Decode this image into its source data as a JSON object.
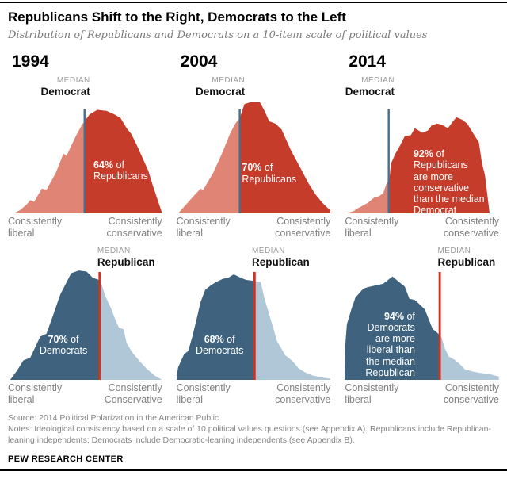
{
  "header": {
    "title": "Republicans Shift to the Right, Democrats to the Left",
    "subtitle": "Distribution of Republicans and Democrats on a 10-item scale of political values"
  },
  "palette": {
    "dark_red": "#c53c2b",
    "light_red": "#e08475",
    "dark_blue": "#3f637e",
    "light_blue": "#b0c7d7",
    "median_line_blue": "#44708e",
    "median_line_red": "#d5311f",
    "annotation_white": "#ffffff",
    "axis_gray": "#7f7f7f",
    "kicker_gray": "#9b9b9b"
  },
  "chart_data": {
    "type": "area",
    "title": "Republicans Shift to the Right, Democrats to the Left",
    "subtitle": "Distribution of Republicans and Democrats on a 10-item scale of political values",
    "x_axis": "10-item scale of political values, from consistently liberal (left) to consistently conservative (right)",
    "grid": "off",
    "panels": [
      {
        "id": "republicans-1994",
        "row": "top",
        "year": "1994",
        "series": "Republicans",
        "median": {
          "kicker": "MEDIAN",
          "label": "Democrat",
          "x": 0.497
        },
        "colors": {
          "light": "light_red",
          "dark": "dark_red",
          "line": "median_line_blue"
        },
        "dark_side": "right",
        "annotation": {
          "pct": "64%",
          "suffix": " of",
          "lines": [
            "Republicans"
          ],
          "align": "left",
          "x": 0.555,
          "y": 0.53
        },
        "axis_left": [
          "Consistently",
          "liberal"
        ],
        "axis_right": [
          "Consistently",
          "conservative"
        ],
        "points": [
          [
            0.04,
            0
          ],
          [
            0.08,
            0.03
          ],
          [
            0.12,
            0.075
          ],
          [
            0.145,
            0.115
          ],
          [
            0.17,
            0.1
          ],
          [
            0.22,
            0.215
          ],
          [
            0.25,
            0.205
          ],
          [
            0.31,
            0.35
          ],
          [
            0.36,
            0.52
          ],
          [
            0.38,
            0.5
          ],
          [
            0.44,
            0.67
          ],
          [
            0.48,
            0.77
          ],
          [
            0.53,
            0.86
          ],
          [
            0.58,
            0.9
          ],
          [
            0.64,
            0.89
          ],
          [
            0.69,
            0.86
          ],
          [
            0.73,
            0.83
          ],
          [
            0.77,
            0.74
          ],
          [
            0.8,
            0.69
          ],
          [
            0.84,
            0.58
          ],
          [
            0.88,
            0.46
          ],
          [
            0.91,
            0.37
          ],
          [
            0.94,
            0.24
          ],
          [
            0.97,
            0.12
          ],
          [
            1.0,
            0
          ]
        ]
      },
      {
        "id": "republicans-2004",
        "row": "top",
        "year": "2004",
        "series": "Republicans",
        "median": {
          "kicker": "MEDIAN",
          "label": "Democrat",
          "x": 0.409
        },
        "colors": {
          "light": "light_red",
          "dark": "dark_red",
          "line": "median_line_blue"
        },
        "dark_side": "right",
        "annotation": {
          "pct": "70%",
          "suffix": " of",
          "lines": [
            "Republicans"
          ],
          "align": "left",
          "x": 0.425,
          "y": 0.555
        },
        "axis_left": [
          "Consistently",
          "liberal"
        ],
        "axis_right": [
          "Consistently",
          "conservative"
        ],
        "points": [
          [
            0.01,
            0
          ],
          [
            0.05,
            0.06
          ],
          [
            0.1,
            0.135
          ],
          [
            0.155,
            0.215
          ],
          [
            0.17,
            0.2
          ],
          [
            0.24,
            0.36
          ],
          [
            0.3,
            0.54
          ],
          [
            0.345,
            0.69
          ],
          [
            0.38,
            0.78
          ],
          [
            0.41,
            0.83
          ],
          [
            0.44,
            0.95
          ],
          [
            0.49,
            0.97
          ],
          [
            0.54,
            0.965
          ],
          [
            0.57,
            0.89
          ],
          [
            0.6,
            0.8
          ],
          [
            0.64,
            0.78
          ],
          [
            0.68,
            0.73
          ],
          [
            0.74,
            0.55
          ],
          [
            0.8,
            0.4
          ],
          [
            0.855,
            0.26
          ],
          [
            0.9,
            0.165
          ],
          [
            0.945,
            0.09
          ],
          [
            1.0,
            0.02
          ],
          [
            1.0,
            0
          ]
        ]
      },
      {
        "id": "republicans-2014",
        "row": "top",
        "year": "2014",
        "series": "Republicans",
        "median": {
          "kicker": "MEDIAN",
          "label": "Democrat",
          "x": 0.286
        },
        "colors": {
          "light": "light_red",
          "dark": "dark_red",
          "line": "median_line_blue"
        },
        "dark_side": "right",
        "annotation": {
          "pct": "92%",
          "suffix": " of",
          "lines": [
            "Republicans",
            "are more",
            "conservative",
            "than the median",
            "Democrat"
          ],
          "align": "left",
          "x": 0.445,
          "y": 0.435
        },
        "axis_left": [
          "Consistently",
          "liberal"
        ],
        "axis_right": [
          "Consistently",
          "conservative"
        ],
        "points": [
          [
            0.01,
            0
          ],
          [
            0.06,
            0.02
          ],
          [
            0.08,
            0.04
          ],
          [
            0.15,
            0.09
          ],
          [
            0.19,
            0.135
          ],
          [
            0.225,
            0.15
          ],
          [
            0.25,
            0.175
          ],
          [
            0.275,
            0.27
          ],
          [
            0.29,
            0.28
          ],
          [
            0.3,
            0.43
          ],
          [
            0.33,
            0.52
          ],
          [
            0.36,
            0.59
          ],
          [
            0.39,
            0.67
          ],
          [
            0.43,
            0.68
          ],
          [
            0.455,
            0.74
          ],
          [
            0.505,
            0.7
          ],
          [
            0.54,
            0.72
          ],
          [
            0.565,
            0.765
          ],
          [
            0.6,
            0.78
          ],
          [
            0.63,
            0.77
          ],
          [
            0.67,
            0.74
          ],
          [
            0.7,
            0.795
          ],
          [
            0.725,
            0.835
          ],
          [
            0.76,
            0.815
          ],
          [
            0.795,
            0.78
          ],
          [
            0.845,
            0.67
          ],
          [
            0.87,
            0.62
          ],
          [
            0.89,
            0.44
          ],
          [
            0.91,
            0.33
          ],
          [
            0.94,
            0
          ]
        ]
      },
      {
        "id": "democrats-1994",
        "row": "bottom",
        "year": "1994",
        "series": "Democrats",
        "median": {
          "kicker": "MEDIAN",
          "label": "Republican",
          "x": 0.595
        },
        "colors": {
          "light": "light_blue",
          "dark": "dark_blue",
          "line": "median_line_red"
        },
        "dark_side": "left",
        "annotation": {
          "pct": "70%",
          "suffix": " of",
          "lines": [
            "Democrats"
          ],
          "align": "center",
          "x": 0.36,
          "y": 0.585
        },
        "axis_left": [
          "Consistently",
          "liberal"
        ],
        "axis_right": [
          "Consistently",
          "Conservative"
        ],
        "points": [
          [
            0.015,
            0
          ],
          [
            0.06,
            0.085
          ],
          [
            0.1,
            0.175
          ],
          [
            0.145,
            0.2
          ],
          [
            0.21,
            0.39
          ],
          [
            0.25,
            0.415
          ],
          [
            0.29,
            0.57
          ],
          [
            0.34,
            0.77
          ],
          [
            0.41,
            0.96
          ],
          [
            0.46,
            0.985
          ],
          [
            0.51,
            0.975
          ],
          [
            0.55,
            0.92
          ],
          [
            0.59,
            0.9
          ],
          [
            0.61,
            0.85
          ],
          [
            0.63,
            0.76
          ],
          [
            0.67,
            0.64
          ],
          [
            0.7,
            0.53
          ],
          [
            0.72,
            0.47
          ],
          [
            0.75,
            0.455
          ],
          [
            0.77,
            0.33
          ],
          [
            0.81,
            0.24
          ],
          [
            0.85,
            0.175
          ],
          [
            0.9,
            0.1
          ],
          [
            0.95,
            0.04
          ],
          [
            1.0,
            0
          ]
        ]
      },
      {
        "id": "democrats-2004",
        "row": "bottom",
        "year": "2004",
        "series": "Democrats",
        "median": {
          "kicker": "MEDIAN",
          "label": "Republican",
          "x": 0.505
        },
        "colors": {
          "light": "light_blue",
          "dark": "dark_blue",
          "line": "median_line_red"
        },
        "dark_side": "left",
        "annotation": {
          "pct": "68%",
          "suffix": " of",
          "lines": [
            "Democrats"
          ],
          "align": "center",
          "x": 0.28,
          "y": 0.585
        },
        "axis_left": [
          "Consistently",
          "liberal"
        ],
        "axis_right": [
          "Consistently",
          "conservative"
        ],
        "points": [
          [
            0.0,
            0.03
          ],
          [
            0.01,
            0.115
          ],
          [
            0.048,
            0.23
          ],
          [
            0.075,
            0.26
          ],
          [
            0.1,
            0.38
          ],
          [
            0.13,
            0.55
          ],
          [
            0.155,
            0.7
          ],
          [
            0.185,
            0.81
          ],
          [
            0.22,
            0.85
          ],
          [
            0.255,
            0.88
          ],
          [
            0.3,
            0.91
          ],
          [
            0.335,
            0.92
          ],
          [
            0.37,
            0.95
          ],
          [
            0.415,
            0.92
          ],
          [
            0.45,
            0.9
          ],
          [
            0.48,
            0.895
          ],
          [
            0.505,
            0.89
          ],
          [
            0.545,
            0.88
          ],
          [
            0.57,
            0.73
          ],
          [
            0.6,
            0.59
          ],
          [
            0.625,
            0.475
          ],
          [
            0.65,
            0.35
          ],
          [
            0.68,
            0.28
          ],
          [
            0.705,
            0.22
          ],
          [
            0.73,
            0.195
          ],
          [
            0.76,
            0.155
          ],
          [
            0.79,
            0.105
          ],
          [
            0.83,
            0.07
          ],
          [
            0.88,
            0.04
          ],
          [
            0.95,
            0.02
          ],
          [
            1.0,
            0.01
          ],
          [
            1.0,
            0
          ]
        ]
      },
      {
        "id": "democrats-2014",
        "row": "bottom",
        "year": "2014",
        "series": "Democrats",
        "median": {
          "kicker": "MEDIAN",
          "label": "Republican",
          "x": 0.617
        },
        "colors": {
          "light": "light_blue",
          "dark": "dark_blue",
          "line": "median_line_red"
        },
        "dark_side": "left",
        "annotation": {
          "pct": "94%",
          "suffix": " of",
          "lines": [
            "Democrats",
            "are more",
            "liberal than",
            "the median",
            "Republican"
          ],
          "align": "right",
          "x": 0.455,
          "y": 0.375
        },
        "axis_left": [
          "Consistently",
          "liberal"
        ],
        "axis_right": [
          "Consistently",
          "conservative"
        ],
        "points": [
          [
            0.0,
            0
          ],
          [
            0.004,
            0.3
          ],
          [
            0.015,
            0.5
          ],
          [
            0.045,
            0.64
          ],
          [
            0.07,
            0.74
          ],
          [
            0.12,
            0.82
          ],
          [
            0.15,
            0.835
          ],
          [
            0.2,
            0.85
          ],
          [
            0.25,
            0.865
          ],
          [
            0.31,
            0.93
          ],
          [
            0.35,
            0.885
          ],
          [
            0.39,
            0.84
          ],
          [
            0.42,
            0.73
          ],
          [
            0.455,
            0.72
          ],
          [
            0.49,
            0.675
          ],
          [
            0.52,
            0.635
          ],
          [
            0.57,
            0.46
          ],
          [
            0.6,
            0.425
          ],
          [
            0.63,
            0.38
          ],
          [
            0.648,
            0.29
          ],
          [
            0.675,
            0.21
          ],
          [
            0.71,
            0.185
          ],
          [
            0.745,
            0.145
          ],
          [
            0.78,
            0.095
          ],
          [
            0.83,
            0.075
          ],
          [
            0.88,
            0.062
          ],
          [
            0.94,
            0.052
          ],
          [
            1.0,
            0.03
          ],
          [
            1.0,
            0
          ]
        ]
      }
    ]
  },
  "footer": {
    "source": "Source: 2014 Political Polarization in the American Public",
    "notes": "Notes: Ideological consistency based on a scale of 10 political values questions (see Appendix A). Republicans include Republican-leaning independents; Democrats include Democratic-leaning independents (see Appendix B).",
    "brand": "PEW RESEARCH CENTER"
  }
}
